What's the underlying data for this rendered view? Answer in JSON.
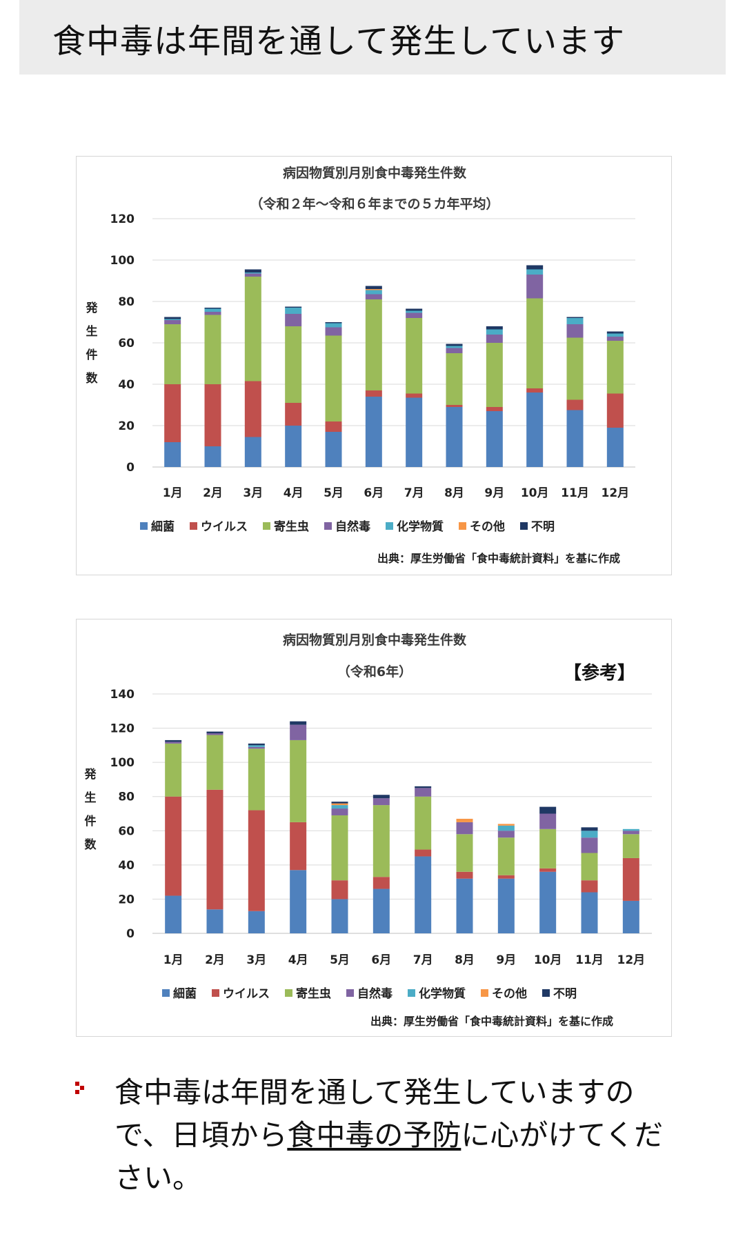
{
  "header": {
    "title": "食中毒は年間を通して発生しています"
  },
  "legend": [
    {
      "name": "細菌",
      "color": "#4f81bd"
    },
    {
      "name": "ウイルス",
      "color": "#c0504d"
    },
    {
      "name": "寄生虫",
      "color": "#9bbb59"
    },
    {
      "name": "自然毒",
      "color": "#8064a2"
    },
    {
      "name": "化学物質",
      "color": "#4bacc6"
    },
    {
      "name": "その他",
      "color": "#f79646"
    },
    {
      "name": "不明",
      "color": "#1f3864"
    }
  ],
  "chart_data": [
    {
      "type": "bar",
      "stacked": true,
      "title": "病因物質別月別食中毒発生件数",
      "subtitle": "（令和２年～令和６年までの５カ年平均）",
      "ylabel": "発生件数",
      "ylim": [
        0,
        120
      ],
      "yticks": [
        0,
        20,
        40,
        60,
        80,
        100,
        120
      ],
      "grid": true,
      "legend_position": "bottom",
      "source": "出典：厚生労働省「食中毒統計資料」を基に作成",
      "categories": [
        "1月",
        "2月",
        "3月",
        "4月",
        "5月",
        "6月",
        "7月",
        "8月",
        "9月",
        "10月",
        "11月",
        "12月"
      ],
      "series": [
        {
          "name": "細菌",
          "values": [
            12,
            10,
            14.5,
            20,
            17,
            34,
            33.5,
            29,
            27,
            36,
            27.5,
            19
          ]
        },
        {
          "name": "ウイルス",
          "values": [
            28,
            30,
            27,
            11,
            5,
            3,
            2,
            1,
            2,
            2,
            5,
            16.5
          ]
        },
        {
          "name": "寄生虫",
          "values": [
            29,
            33.5,
            50.5,
            37,
            41.5,
            44,
            36.5,
            25,
            31,
            43.5,
            30,
            25.5
          ]
        },
        {
          "name": "自然毒",
          "values": [
            2,
            1.5,
            1.5,
            6,
            4,
            2.5,
            2.5,
            2.5,
            4,
            11.5,
            6.5,
            2
          ]
        },
        {
          "name": "化学物質",
          "values": [
            0.5,
            1.5,
            0.5,
            3,
            2,
            2,
            1,
            1,
            2.5,
            2.5,
            3,
            1.5
          ]
        },
        {
          "name": "その他",
          "values": [
            0,
            0,
            0,
            0,
            0,
            0.5,
            0,
            0,
            0,
            0,
            0,
            0
          ]
        },
        {
          "name": "不明",
          "values": [
            1,
            0.5,
            1.5,
            0.5,
            0.5,
            1.5,
            1,
            1,
            1.5,
            2,
            0.5,
            1
          ]
        }
      ]
    },
    {
      "type": "bar",
      "stacked": true,
      "title": "病因物質別月別食中毒発生件数",
      "subtitle": "（令和6年）",
      "badge": "【参考】",
      "ylabel": "発生件数",
      "ylim": [
        0,
        140
      ],
      "yticks": [
        0,
        20,
        40,
        60,
        80,
        100,
        120,
        140
      ],
      "grid": true,
      "legend_position": "bottom",
      "source": "出典：厚生労働省「食中毒統計資料」を基に作成",
      "categories": [
        "1月",
        "2月",
        "3月",
        "4月",
        "5月",
        "6月",
        "7月",
        "8月",
        "9月",
        "10月",
        "11月",
        "12月"
      ],
      "series": [
        {
          "name": "細菌",
          "values": [
            22,
            14,
            13,
            37,
            20,
            26,
            45,
            32,
            32,
            36,
            24,
            19
          ]
        },
        {
          "name": "ウイルス",
          "values": [
            58,
            70,
            59,
            28,
            11,
            7,
            4,
            4,
            2,
            2,
            7,
            25
          ]
        },
        {
          "name": "寄生虫",
          "values": [
            31,
            32,
            36,
            48,
            38,
            42,
            31,
            22,
            22,
            23,
            16,
            14
          ]
        },
        {
          "name": "自然毒",
          "values": [
            1,
            1,
            1,
            9,
            4,
            4,
            5,
            7,
            4,
            9,
            9,
            2
          ]
        },
        {
          "name": "化学物質",
          "values": [
            0,
            0,
            1,
            0,
            2,
            0,
            0,
            0,
            3,
            0,
            4,
            1
          ]
        },
        {
          "name": "その他",
          "values": [
            0,
            0,
            0,
            0,
            1,
            0,
            0,
            2,
            1,
            0,
            0,
            0
          ]
        },
        {
          "name": "不明",
          "values": [
            1,
            1,
            1,
            2,
            1,
            2,
            1,
            0,
            0,
            4,
            2,
            0
          ]
        }
      ]
    }
  ],
  "note": {
    "text_before": "食中毒は年間を通して発生していますので、日頃から",
    "link_text": "食中毒の予防",
    "text_after": "に心がけてください。"
  }
}
